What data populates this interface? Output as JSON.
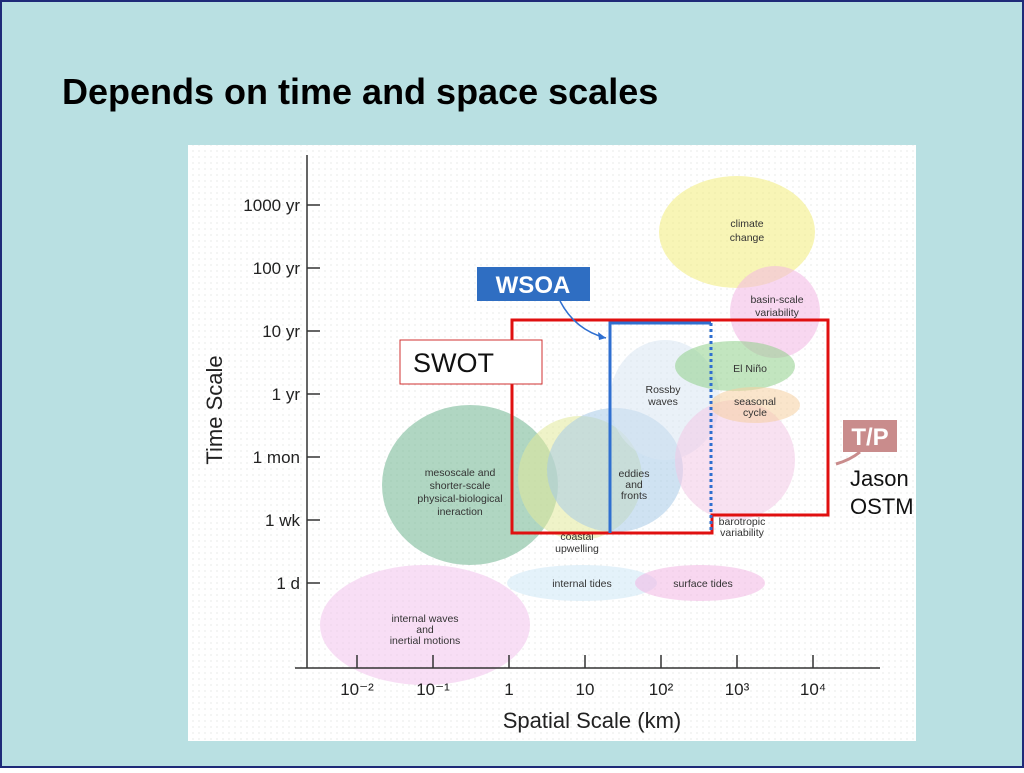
{
  "title": "Depends on time and space scales",
  "figure": {
    "y_axis_label": "Time Scale",
    "x_axis_label": "Spatial Scale (km)",
    "y_ticks": [
      "1000 yr",
      "100 yr",
      "10 yr",
      "1 yr",
      "1 mon",
      "1 wk",
      "1 d"
    ],
    "x_ticks": [
      "10⁻²",
      "10⁻¹",
      "1",
      "10",
      "10²",
      "10³",
      "10⁴"
    ],
    "regions": [
      {
        "lines": [
          "climate",
          "change"
        ]
      },
      {
        "lines": [
          "basin-scale",
          "variability"
        ]
      },
      {
        "lines": [
          "El Niño"
        ]
      },
      {
        "lines": [
          "seasonal",
          "cycle"
        ]
      },
      {
        "lines": [
          "Rossby",
          "waves"
        ]
      },
      {
        "lines": [
          "mesoscale and",
          "shorter-scale",
          "physical-biological",
          "ineraction"
        ]
      },
      {
        "lines": [
          "eddies",
          "and",
          "fronts"
        ]
      },
      {
        "lines": [
          "coastal",
          "upwelling"
        ]
      },
      {
        "lines": [
          "barotropic",
          "variability"
        ]
      },
      {
        "lines": [
          "internal tides"
        ]
      },
      {
        "lines": [
          "surface tides"
        ]
      },
      {
        "lines": [
          "internal waves",
          "and",
          "inertial motions"
        ]
      }
    ],
    "annotations": {
      "wsoa": "WSOA",
      "swot": "SWOT",
      "tp": "T/P",
      "jason": [
        "Jason",
        "OSTM"
      ]
    }
  }
}
